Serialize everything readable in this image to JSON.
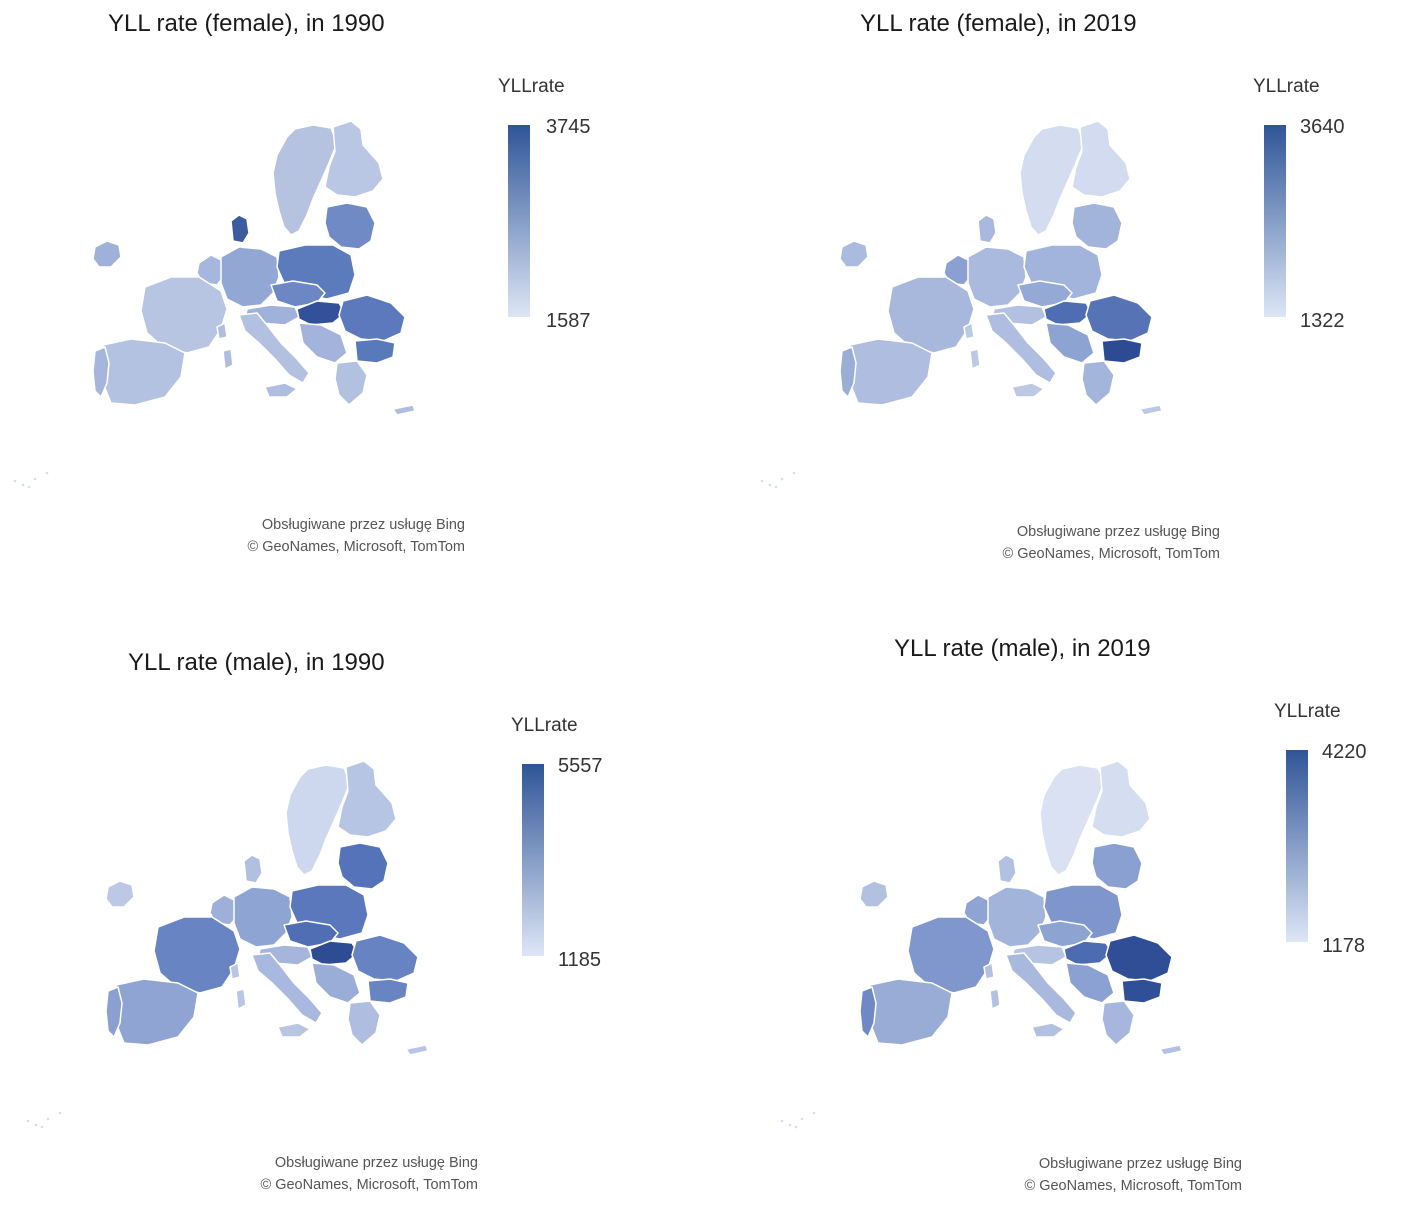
{
  "panels": [
    {
      "title": "YLL rate (female), in 1990",
      "legend": {
        "title": "YLLrate",
        "max": "3745",
        "min": "1587"
      },
      "attribution": {
        "line1": "Obsługiwane przez usługę Bing",
        "line2": "© GeoNames, Microsoft, TomTom"
      },
      "shades": {
        "north": "#b5c3e1",
        "finland": "#b9c7e4",
        "baltic": "#6f8ac4",
        "ireland": "#9fb1d9",
        "denmark": "#3d5c9f",
        "benelux": "#a6b6dc",
        "germany": "#93a7d4",
        "poland": "#5c7bbd",
        "czech": "#6c87c3",
        "austria": "#a0b2da",
        "hungary": "#33509a",
        "romania": "#5b79bc",
        "bulgaria": "#587aba",
        "france": "#b7c4e2",
        "iberia": "#b4c2e1",
        "portugal": "#a5b5dc",
        "italy": "#b3c1e0",
        "balkans": "#a3b3db",
        "greece": "#b3c1e1",
        "islands": "#aebde0"
      }
    },
    {
      "title": "YLL rate (female), in 2019",
      "legend": {
        "title": "YLLrate",
        "max": "3640",
        "min": "1322"
      },
      "attribution": {
        "line1": "Obsługiwane przez usługę Bing",
        "line2": "© GeoNames, Microsoft, TomTom"
      },
      "shades": {
        "north": "#d4ddf0",
        "finland": "#d2dbef",
        "baltic": "#a3b4db",
        "ireland": "#aabbdf",
        "denmark": "#a9b8de",
        "benelux": "#8aa0d2",
        "germany": "#aabadf",
        "poland": "#a2b4dc",
        "czech": "#95a9d6",
        "austria": "#b3c1e1",
        "hungary": "#4e6db3",
        "romania": "#5673b6",
        "bulgaria": "#2c4b92",
        "france": "#a8b8dd",
        "iberia": "#aebde0",
        "portugal": "#9aadd7",
        "italy": "#afbee0",
        "balkans": "#8da3d1",
        "greece": "#a4b5dc",
        "islands": "#bdc9e4"
      }
    },
    {
      "title": "YLL rate (male), in 1990",
      "legend": {
        "title": "YLLrate",
        "max": "5557",
        "min": "1185"
      },
      "attribution": {
        "line1": "Obsługiwane przez usługę Bing",
        "line2": "© GeoNames, Microsoft, TomTom"
      },
      "shades": {
        "north": "#cdd8ee",
        "finland": "#b7c5e4",
        "baltic": "#5473b8",
        "ireland": "#bcc8e5",
        "denmark": "#b1bfe1",
        "benelux": "#9eb0da",
        "germany": "#8ea4d2",
        "poland": "#5a78bb",
        "czech": "#4f6eb4",
        "austria": "#a5b5dc",
        "hungary": "#2e4c94",
        "romania": "#6883c1",
        "bulgaria": "#6984c2",
        "france": "#6984c3",
        "iberia": "#8fa4d3",
        "portugal": "#8ba0d1",
        "italy": "#a8b8de",
        "balkans": "#9aadd7",
        "greece": "#afbee0",
        "islands": "#b9c6e3"
      }
    },
    {
      "title": "YLL rate (male), in 2019",
      "legend": {
        "title": "YLLrate",
        "max": "4220",
        "min": "1178"
      },
      "attribution": {
        "line1": "Obsługiwane przez usługę Bing",
        "line2": "© GeoNames, Microsoft, TomTom"
      },
      "shades": {
        "north": "#d9e1f2",
        "finland": "#d5def0",
        "baltic": "#8aa0d1",
        "ireland": "#b3c1e1",
        "denmark": "#b2c0e1",
        "benelux": "#8fa4d3",
        "germany": "#a3b4db",
        "poland": "#7e96cc",
        "czech": "#8da3d2",
        "austria": "#b6c3e2",
        "hungary": "#4c6bb2",
        "romania": "#2f4e95",
        "bulgaria": "#2f4f96",
        "france": "#7f97cc",
        "iberia": "#98acd6",
        "portugal": "#6f89c4",
        "italy": "#a9b9de",
        "balkans": "#8ba1d1",
        "greece": "#a6b6dd",
        "islands": "#b2c0e1"
      }
    }
  ]
}
